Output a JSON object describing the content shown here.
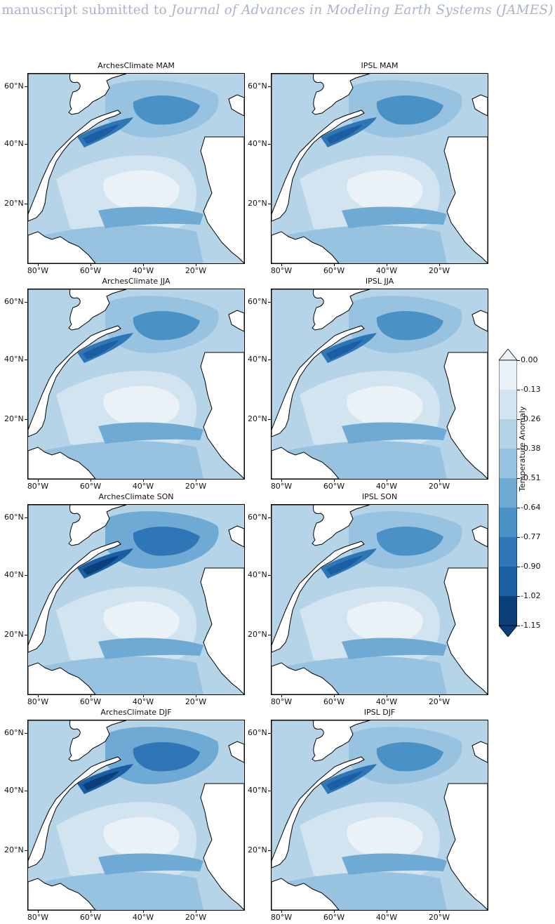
{
  "header": {
    "prefix": "manuscript submitted to",
    "journal": "Journal of Advances in Modeling Earth Systems (JAMES)"
  },
  "axes": {
    "lat_ticks": [
      "60°N",
      "40°N",
      "20°N"
    ],
    "lon_ticks": [
      "80°W",
      "60°W",
      "40°W",
      "20°W"
    ]
  },
  "panels": [
    {
      "title": "ArchesClimate MAM",
      "palette_bias": 0
    },
    {
      "title": "IPSL MAM",
      "palette_bias": 0
    },
    {
      "title": "ArchesClimate JJA",
      "palette_bias": 0
    },
    {
      "title": "IPSL JJA",
      "palette_bias": 0
    },
    {
      "title": "ArchesClimate SON",
      "palette_bias": 1
    },
    {
      "title": "IPSL SON",
      "palette_bias": 0
    },
    {
      "title": "ArchesClimate DJF",
      "palette_bias": 1
    },
    {
      "title": "IPSL DJF",
      "palette_bias": 0
    }
  ],
  "colorbar": {
    "title": "Temperature Anomaly",
    "ticks": [
      "0.00",
      "-0.13",
      "-0.26",
      "-0.38",
      "-0.51",
      "-0.64",
      "-0.77",
      "-0.90",
      "-1.02",
      "-1.15"
    ],
    "colors": [
      "#eaf2f8",
      "#d3e4f1",
      "#b6d4e8",
      "#98c3e0",
      "#6faad4",
      "#4a91c6",
      "#2e76b6",
      "#1c5ea3",
      "#0b3f79"
    ],
    "extend": "both"
  }
}
